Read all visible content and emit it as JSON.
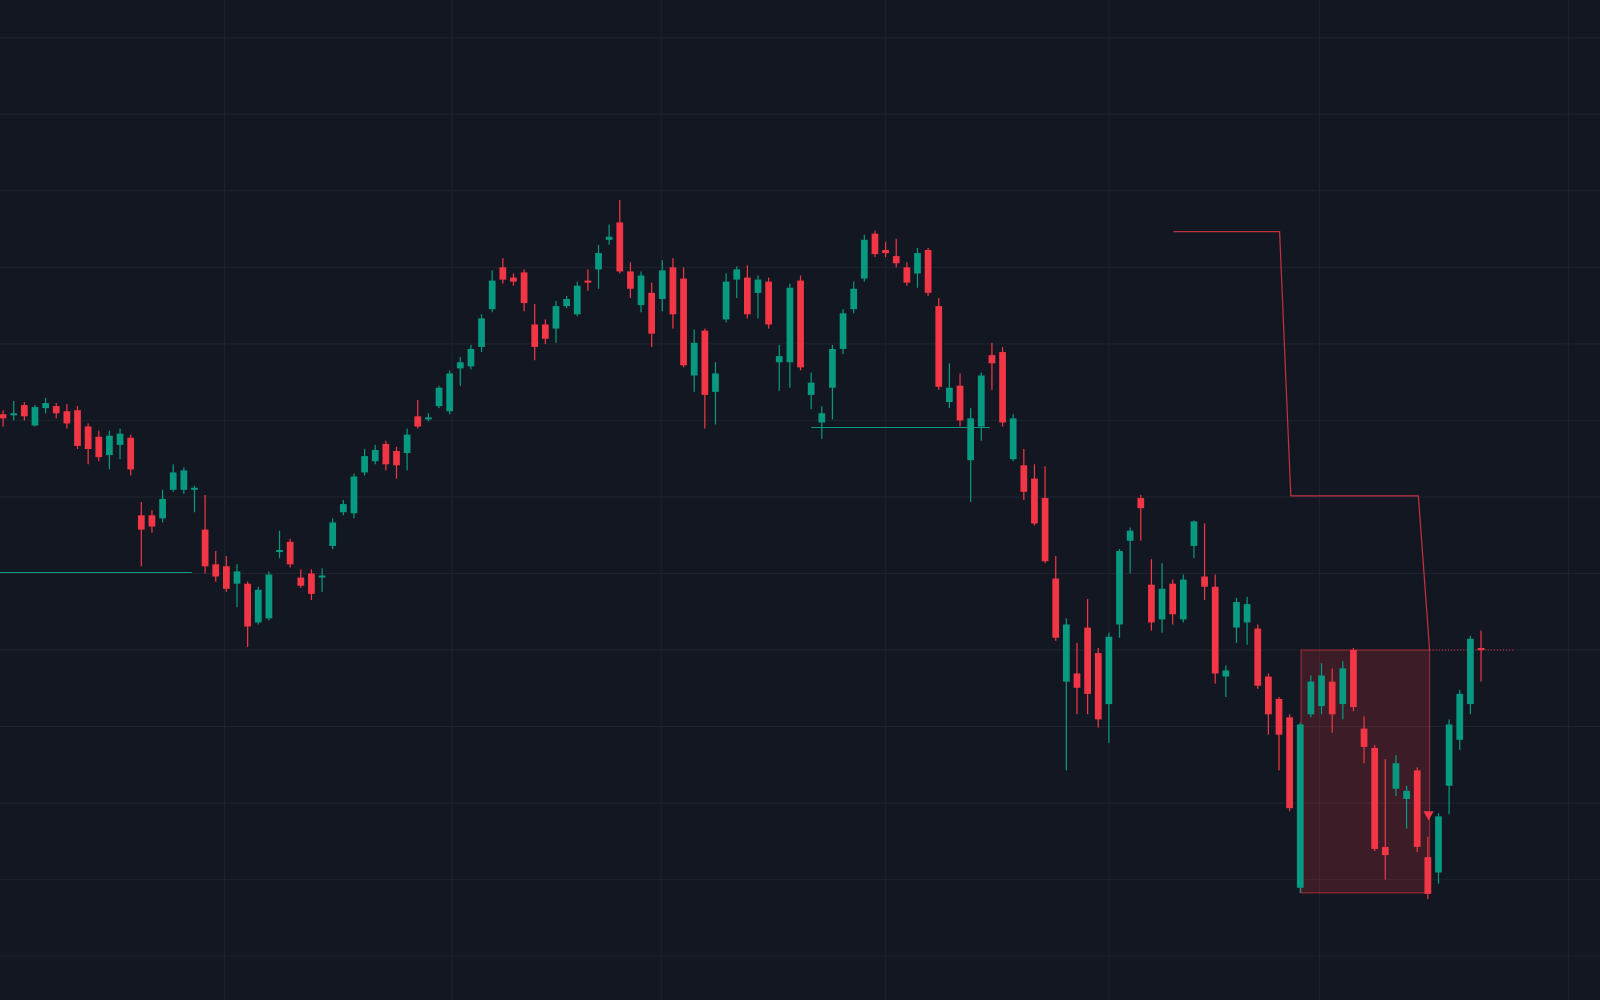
{
  "chart_data": {
    "type": "candlestick",
    "up_color": "#089981",
    "down_color": "#f23645",
    "grid": true,
    "xlim": [
      -0.29,
      150.19
    ],
    "ylim": [
      20,
      1000
    ],
    "xticks": [
      20.83,
      42.23,
      61.9,
      83.01,
      104.03,
      123.8,
      147.22
    ],
    "yticks": [
      963,
      888,
      813,
      738,
      663,
      588,
      513,
      438,
      363,
      288,
      213,
      138,
      63
    ],
    "ohlc": [
      [
        594,
        598,
        582,
        590
      ],
      [
        593,
        607,
        588,
        595
      ],
      [
        603,
        606,
        588,
        592
      ],
      [
        583,
        603,
        582,
        601
      ],
      [
        600,
        610,
        595,
        605
      ],
      [
        602,
        605,
        590,
        595
      ],
      [
        597,
        604,
        580,
        585
      ],
      [
        598,
        602,
        560,
        563
      ],
      [
        582,
        585,
        545,
        560
      ],
      [
        572,
        578,
        548,
        552
      ],
      [
        554,
        578,
        540,
        573
      ],
      [
        564,
        580,
        550,
        575
      ],
      [
        571,
        574,
        534,
        540
      ],
      [
        495,
        508,
        445,
        481
      ],
      [
        495,
        500,
        478,
        484
      ],
      [
        492,
        520,
        488,
        511
      ],
      [
        520,
        545,
        518,
        537
      ],
      [
        520,
        542,
        516,
        539
      ],
      [
        520,
        524,
        498,
        522
      ],
      [
        481,
        515,
        438,
        445
      ],
      [
        447,
        460,
        430,
        435
      ],
      [
        445,
        455,
        420,
        423
      ],
      [
        428,
        447,
        405,
        440
      ],
      [
        428,
        430,
        366,
        386
      ],
      [
        390,
        425,
        388,
        422
      ],
      [
        394,
        440,
        392,
        437
      ],
      [
        459,
        480,
        453,
        461
      ],
      [
        469,
        472,
        444,
        447
      ],
      [
        434,
        442,
        424,
        426
      ],
      [
        438,
        442,
        412,
        418
      ],
      [
        434,
        443,
        420,
        436
      ],
      [
        465,
        492,
        462,
        488
      ],
      [
        498,
        510,
        495,
        506
      ],
      [
        497,
        536,
        492,
        533
      ],
      [
        537,
        560,
        534,
        553
      ],
      [
        548,
        564,
        545,
        559
      ],
      [
        565,
        568,
        539,
        545
      ],
      [
        558,
        562,
        531,
        544
      ],
      [
        556,
        580,
        539,
        574
      ],
      [
        592,
        608,
        580,
        582
      ],
      [
        589,
        595,
        587,
        591
      ],
      [
        602,
        622,
        600,
        620
      ],
      [
        597,
        637,
        594,
        634
      ],
      [
        639,
        650,
        622,
        645
      ],
      [
        641,
        662,
        638,
        658
      ],
      [
        660,
        692,
        655,
        688
      ],
      [
        697,
        735,
        694,
        725
      ],
      [
        738,
        747,
        722,
        726
      ],
      [
        728,
        732,
        720,
        724
      ],
      [
        733,
        736,
        695,
        703
      ],
      [
        682,
        702,
        647,
        660
      ],
      [
        682,
        687,
        663,
        668
      ],
      [
        678,
        705,
        664,
        700
      ],
      [
        700,
        710,
        698,
        707
      ],
      [
        692,
        724,
        690,
        720
      ],
      [
        725,
        736,
        715,
        723
      ],
      [
        736,
        760,
        717,
        752
      ],
      [
        765,
        780,
        760,
        768
      ],
      [
        782,
        804,
        732,
        734
      ],
      [
        734,
        743,
        708,
        717
      ],
      [
        701,
        734,
        694,
        730
      ],
      [
        713,
        723,
        660,
        673
      ],
      [
        707,
        745,
        695,
        735
      ],
      [
        738,
        747,
        678,
        692
      ],
      [
        727,
        738,
        640,
        642
      ],
      [
        632,
        677,
        616,
        664
      ],
      [
        676,
        678,
        580,
        613
      ],
      [
        616,
        645,
        584,
        634
      ],
      [
        687,
        732,
        684,
        724
      ],
      [
        726,
        739,
        708,
        736
      ],
      [
        728,
        740,
        688,
        692
      ],
      [
        713,
        730,
        688,
        726
      ],
      [
        724,
        728,
        678,
        682
      ],
      [
        645,
        662,
        617,
        651
      ],
      [
        645,
        722,
        620,
        718
      ],
      [
        725,
        730,
        637,
        640
      ],
      [
        613,
        635,
        599,
        625
      ],
      [
        586,
        602,
        570,
        595
      ],
      [
        620,
        662,
        589,
        658
      ],
      [
        658,
        697,
        653,
        693
      ],
      [
        697,
        724,
        693,
        717
      ],
      [
        727,
        770,
        724,
        765
      ],
      [
        771,
        774,
        748,
        751
      ],
      [
        755,
        763,
        748,
        752
      ],
      [
        749,
        766,
        738,
        742
      ],
      [
        738,
        743,
        720,
        723
      ],
      [
        732,
        757,
        718,
        752
      ],
      [
        755,
        757,
        710,
        713
      ],
      [
        700,
        708,
        618,
        621
      ],
      [
        606,
        644,
        600,
        620
      ],
      [
        622,
        634,
        582,
        588
      ],
      [
        549,
        600,
        508,
        590
      ],
      [
        582,
        635,
        568,
        632
      ],
      [
        652,
        664,
        618,
        644
      ],
      [
        655,
        660,
        582,
        586
      ],
      [
        550,
        594,
        548,
        590
      ],
      [
        544,
        560,
        510,
        518
      ],
      [
        531,
        545,
        485,
        487
      ],
      [
        512,
        543,
        448,
        450
      ],
      [
        433,
        455,
        372,
        375
      ],
      [
        332,
        394,
        245,
        388
      ],
      [
        340,
        370,
        300,
        326
      ],
      [
        385,
        413,
        300,
        320
      ],
      [
        360,
        365,
        287,
        295
      ],
      [
        310,
        380,
        272,
        376
      ],
      [
        388,
        462,
        375,
        460
      ],
      [
        470,
        483,
        438,
        480
      ],
      [
        512,
        515,
        470,
        502
      ],
      [
        427,
        452,
        382,
        390
      ],
      [
        393,
        448,
        380,
        423
      ],
      [
        428,
        432,
        388,
        398
      ],
      [
        393,
        437,
        390,
        432
      ],
      [
        465,
        490,
        453,
        489
      ],
      [
        435,
        487,
        412,
        425
      ],
      [
        425,
        437,
        330,
        340
      ],
      [
        337,
        348,
        317,
        343
      ],
      [
        385,
        414,
        370,
        410
      ],
      [
        390,
        415,
        368,
        408
      ],
      [
        384,
        388,
        325,
        328
      ],
      [
        337,
        340,
        280,
        300
      ],
      [
        315,
        317,
        245,
        280
      ],
      [
        297,
        300,
        205,
        208
      ],
      [
        130,
        292,
        125,
        290
      ],
      [
        300,
        338,
        297,
        332
      ],
      [
        308,
        350,
        300,
        338
      ],
      [
        332,
        345,
        282,
        300
      ],
      [
        310,
        352,
        295,
        345
      ],
      [
        363,
        365,
        303,
        307
      ],
      [
        286,
        298,
        252,
        268
      ],
      [
        267,
        270,
        166,
        168
      ],
      [
        170,
        256,
        138,
        162
      ],
      [
        227,
        260,
        220,
        252
      ],
      [
        217,
        230,
        188,
        225
      ],
      [
        245,
        248,
        165,
        170
      ],
      [
        160,
        180,
        119,
        124
      ],
      [
        145,
        203,
        134,
        200
      ],
      [
        230,
        295,
        202,
        290
      ],
      [
        275,
        324,
        265,
        320
      ],
      [
        310,
        377,
        300,
        374
      ],
      [
        365,
        382,
        332,
        363
      ]
    ]
  }
}
